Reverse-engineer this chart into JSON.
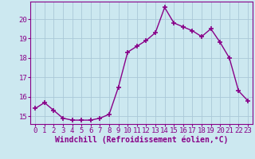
{
  "x": [
    0,
    1,
    2,
    3,
    4,
    5,
    6,
    7,
    8,
    9,
    10,
    11,
    12,
    13,
    14,
    15,
    16,
    17,
    18,
    19,
    20,
    21,
    22,
    23
  ],
  "y": [
    15.4,
    15.7,
    15.3,
    14.9,
    14.8,
    14.8,
    14.8,
    14.9,
    15.1,
    16.5,
    18.3,
    18.6,
    18.9,
    19.3,
    20.6,
    19.8,
    19.6,
    19.4,
    19.1,
    19.5,
    18.8,
    18.0,
    16.3,
    15.8
  ],
  "line_color": "#880088",
  "marker": "+",
  "marker_size": 4,
  "marker_lw": 1.2,
  "bg_color": "#cce8f0",
  "grid_color": "#aac8d8",
  "xlabel": "Windchill (Refroidissement éolien,°C)",
  "ylim": [
    14.6,
    20.9
  ],
  "xlim": [
    -0.5,
    23.5
  ],
  "yticks": [
    15,
    16,
    17,
    18,
    19,
    20
  ],
  "xticks": [
    0,
    1,
    2,
    3,
    4,
    5,
    6,
    7,
    8,
    9,
    10,
    11,
    12,
    13,
    14,
    15,
    16,
    17,
    18,
    19,
    20,
    21,
    22,
    23
  ],
  "tick_label_size": 6.5,
  "xlabel_size": 7.0,
  "linewidth": 1.0
}
